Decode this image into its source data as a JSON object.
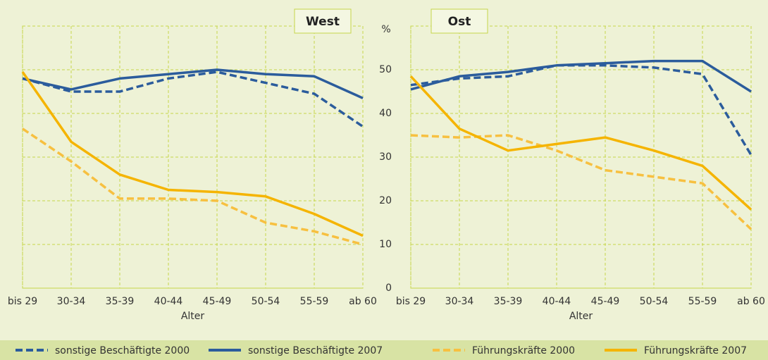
{
  "chart_data": [
    {
      "type": "line",
      "title": "West",
      "x_label": "Alter",
      "categories": [
        "bis 29",
        "30-34",
        "35-39",
        "40-44",
        "45-49",
        "50-54",
        "55-59",
        "ab 60"
      ],
      "ylim": [
        0,
        60
      ],
      "yticks": [
        0,
        10,
        20,
        30,
        40,
        50
      ],
      "grid": true,
      "series": [
        {
          "name": "sonstige Beschäftigte 2000",
          "color": "#2b5c9c",
          "dash": true,
          "values": [
            48,
            45,
            45,
            48,
            49.5,
            47,
            44.5,
            37
          ]
        },
        {
          "name": "sonstige Beschäftigte 2007",
          "color": "#2b5c9c",
          "dash": false,
          "values": [
            48,
            45.5,
            48,
            49,
            50,
            49,
            48.5,
            43.5
          ]
        },
        {
          "name": "Führungskräfte 2000",
          "color": "#f7c040",
          "dash": true,
          "values": [
            36.5,
            29,
            20.5,
            20.5,
            20,
            15,
            13,
            10
          ]
        },
        {
          "name": "Führungskräfte 2007",
          "color": "#f5b400",
          "dash": false,
          "values": [
            49.5,
            33.5,
            26,
            22.5,
            22,
            21,
            17,
            12
          ]
        }
      ]
    },
    {
      "type": "line",
      "title": "Ost",
      "x_label": "Alter",
      "y_label": "%",
      "categories": [
        "bis 29",
        "30-34",
        "35-39",
        "40-44",
        "45-49",
        "50-54",
        "55-59",
        "ab 60"
      ],
      "ylim": [
        0,
        60
      ],
      "yticks": [
        0,
        10,
        20,
        30,
        40,
        50
      ],
      "grid": true,
      "series": [
        {
          "color": "#2b5c9c",
          "dash": true,
          "values": [
            46.5,
            48,
            48.5,
            51,
            51,
            50.5,
            49,
            30.5
          ]
        },
        {
          "color": "#2b5c9c",
          "dash": false,
          "values": [
            45.5,
            48.5,
            49.5,
            51,
            51.5,
            52,
            52,
            45
          ]
        },
        {
          "color": "#f7c040",
          "dash": true,
          "values": [
            35,
            34.5,
            35,
            31.5,
            27,
            25.5,
            24,
            13.5
          ]
        },
        {
          "color": "#f5b400",
          "dash": false,
          "values": [
            48.5,
            36.5,
            31.5,
            33,
            34.5,
            31.5,
            28,
            18
          ]
        }
      ]
    }
  ]
}
